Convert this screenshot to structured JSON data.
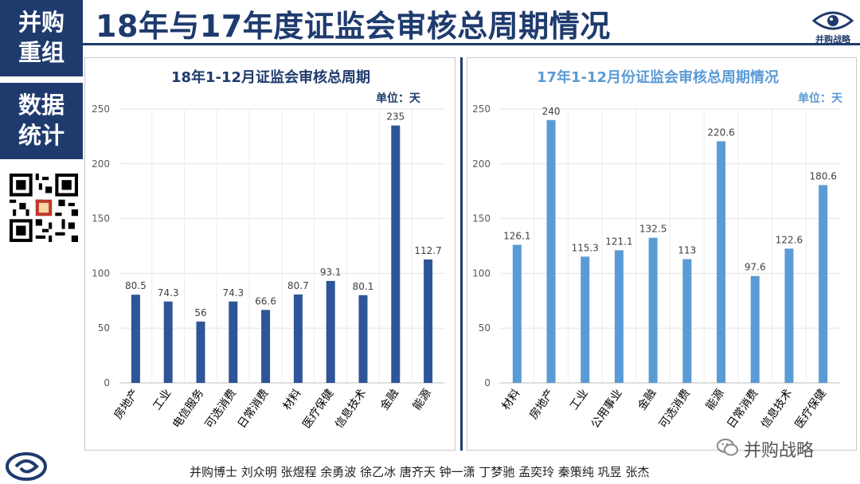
{
  "sidebar": {
    "block1": [
      "并购",
      "重组"
    ],
    "block2": [
      "数据",
      "统计"
    ]
  },
  "header": {
    "title": "18年与17年度证监会审核总周期情况",
    "brand": "并购战略"
  },
  "footer": {
    "authors": "并购博士 刘众明 张煜程 余勇波 徐乙冰 唐齐天 钟一潇 丁梦驰 孟奕玲 秦策纯 巩昱 张杰",
    "wechat_label": "并购战略"
  },
  "colors": {
    "navy": "#1f3b6e",
    "bar_left": "#2e5597",
    "bar_right": "#5b9bd5",
    "title_right": "#5b9bd5"
  },
  "chart_data": [
    {
      "type": "bar",
      "title": "18年1-12月证监会审核总周期",
      "unit": "单位：天",
      "categories": [
        "房地产",
        "工业",
        "电信服务",
        "可选消费",
        "日常消费",
        "材料",
        "医疗保健",
        "信息技术",
        "金融",
        "能源"
      ],
      "values": [
        80.5,
        74.3,
        56,
        74.3,
        66.6,
        80.7,
        93.1,
        80.1,
        235,
        112.7
      ],
      "ylim": [
        0,
        250
      ],
      "yticks": [
        0,
        50,
        100,
        150,
        200,
        250
      ],
      "grid": true
    },
    {
      "type": "bar",
      "title": "17年1-12月份证监会审核总周期情况",
      "unit": "单位：天",
      "categories": [
        "材料",
        "房地产",
        "工业",
        "公用事业",
        "金融",
        "可选消费",
        "能源",
        "日常消费",
        "信息技术",
        "医疗保健"
      ],
      "values": [
        126.1,
        240,
        115.3,
        121.1,
        132.5,
        113,
        220.6,
        97.6,
        122.6,
        180.6
      ],
      "ylim": [
        0,
        250
      ],
      "yticks": [
        0,
        50,
        100,
        150,
        200,
        250
      ],
      "grid": true
    }
  ]
}
